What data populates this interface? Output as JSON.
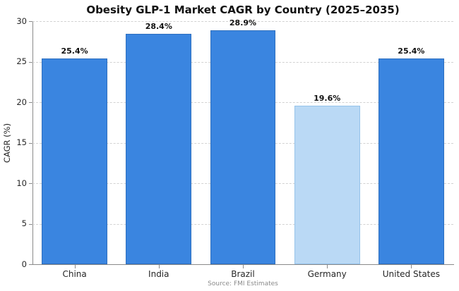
{
  "chart_data": {
    "type": "bar",
    "title": "Obesity GLP-1 Market CAGR by Country (2025–2035)",
    "ylabel": "CAGR (%)",
    "categories": [
      "China",
      "India",
      "Brazil",
      "Germany",
      "United States"
    ],
    "values": [
      25.4,
      28.4,
      28.9,
      19.6,
      25.4
    ],
    "value_labels": [
      "25.4%",
      "28.4%",
      "28.9%",
      "19.6%",
      "25.4%"
    ],
    "ylim": [
      0,
      30
    ],
    "yticks": [
      0,
      5,
      10,
      15,
      20,
      25,
      30
    ],
    "grid": "horizontal-dashed",
    "legend": "none",
    "bar_colors": [
      "#3A85E0",
      "#3A85E0",
      "#3A85E0",
      "#BAD9F5",
      "#3A85E0"
    ],
    "bar_edge_colors": [
      "#2E6FBF",
      "#2E6FBF",
      "#2E6FBF",
      "#96C3EA",
      "#2E6FBF"
    ],
    "source": "Source: FMI Estimates"
  }
}
